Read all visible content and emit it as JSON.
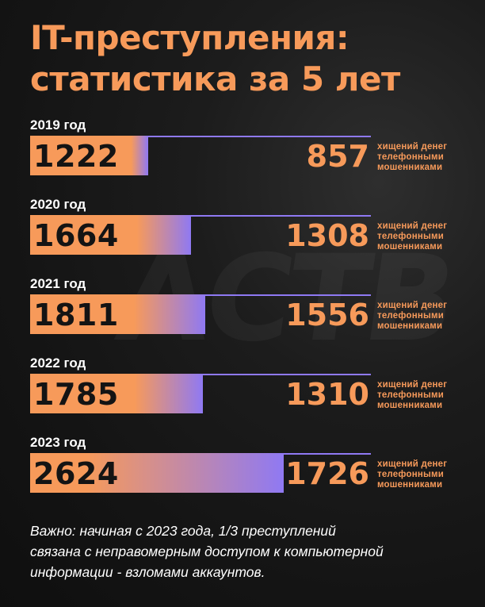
{
  "header": {
    "title_line1": "IT-преступления:",
    "title_line2": "статистика за 5 лет"
  },
  "watermark": "АСТВ",
  "chart_data": {
    "type": "bar",
    "categories": [
      "2019 год",
      "2020 год",
      "2021 год",
      "2022 год",
      "2023 год"
    ],
    "series": [
      {
        "values": [
          1222,
          1664,
          1811,
          1785,
          2624
        ]
      },
      {
        "name": "хищений денег телефонными мошенниками",
        "values": [
          857,
          1308,
          1556,
          1310,
          1726
        ]
      }
    ],
    "note": "хищений денег\nтелефонными\nмошенниками",
    "colors": {
      "bar_start": "#f79a5a",
      "bar_end": "#8f79f3",
      "accent": "#f79a5a",
      "line": "#8f79f3"
    }
  },
  "footer": {
    "text": "Важно: начиная с 2023 года, 1/3 преступлений\nсвязана с неправомерным доступом к компьютерной\nинформации - взломами аккаунтов."
  }
}
